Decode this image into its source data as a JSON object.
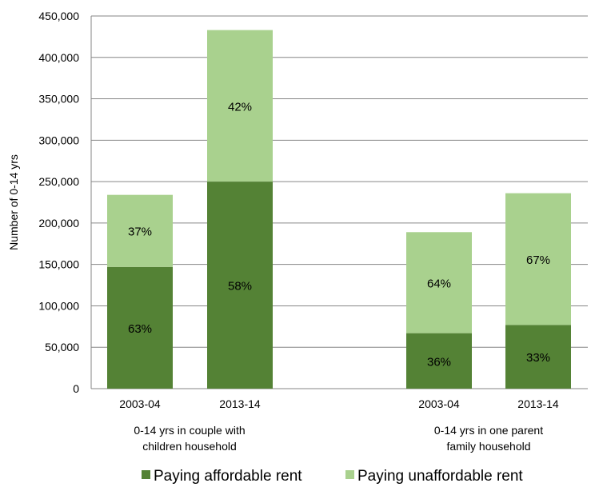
{
  "chart_data": {
    "type": "bar",
    "stacked": true,
    "ylabel": "Number  of 0-14 yrs",
    "ylim": [
      0,
      450000
    ],
    "ytick_step": 50000,
    "grid": true,
    "legend_position": "bottom",
    "groups": [
      {
        "label_lines": [
          "0-14 yrs in couple with",
          "children household"
        ],
        "bars": [
          {
            "category": "2003-04",
            "values": [
              147000,
              87000
            ],
            "labels": [
              "63%",
              "37%"
            ]
          },
          {
            "category": "2013-14",
            "values": [
              250000,
              183000
            ],
            "labels": [
              "58%",
              "42%"
            ]
          }
        ]
      },
      {
        "label_lines": [
          "0-14 yrs in one parent",
          "family household"
        ],
        "bars": [
          {
            "category": "2003-04",
            "values": [
              67000,
              122000
            ],
            "labels": [
              "36%",
              "64%"
            ]
          },
          {
            "category": "2013-14",
            "values": [
              77000,
              159000
            ],
            "labels": [
              "33%",
              "67%"
            ]
          }
        ]
      }
    ],
    "series": [
      {
        "name": "Paying affordable rent",
        "color": "#548235"
      },
      {
        "name": "Paying unaffordable rent",
        "color": "#a9d18e"
      }
    ]
  }
}
